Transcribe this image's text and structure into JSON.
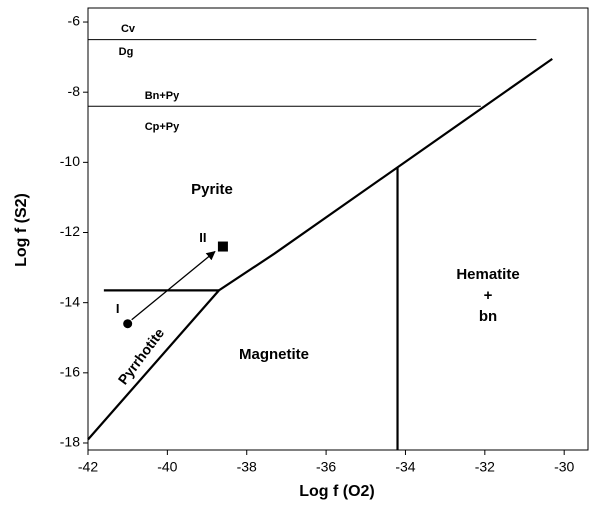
{
  "chart_data": {
    "type": "line",
    "xlabel": "Log f (O2)",
    "ylabel": "Log f (S2)",
    "xlim": [
      -42,
      -29.4
    ],
    "ylim": [
      -18.2,
      -5.6
    ],
    "xticks": [
      -42,
      -40,
      -38,
      -36,
      -34,
      -32,
      -30
    ],
    "yticks": [
      -18,
      -16,
      -14,
      -12,
      -10,
      -8,
      -6
    ],
    "color": "#000000",
    "boundaries": [
      {
        "x": [
          -42,
          -30.7
        ],
        "y": [
          -6.5,
          -6.5
        ]
      },
      {
        "x": [
          -42,
          -32.1
        ],
        "y": [
          -8.4,
          -8.4
        ]
      },
      {
        "x": [
          -42,
          -38.7,
          -37.3,
          -30.3
        ],
        "y": [
          -17.9,
          -13.65,
          -12.6,
          -7.05
        ]
      },
      {
        "x": [
          -41.6,
          -38.7
        ],
        "y": [
          -13.65,
          -13.65
        ]
      },
      {
        "x": [
          -34.2,
          -34.2
        ],
        "y": [
          -18.2,
          -10.15
        ]
      }
    ],
    "points": [
      {
        "label": "I",
        "x": -41,
        "y": -14.6,
        "marker": "circle"
      },
      {
        "label": "II",
        "x": -38.6,
        "y": -12.4,
        "marker": "square"
      }
    ],
    "annotations": [
      "Cv",
      "Dg",
      "Bn+Py",
      "Cp+Py",
      "Pyrite",
      "Pyrrhotite",
      "Magnetite",
      [
        "Hematite",
        "+",
        "bn"
      ]
    ]
  }
}
